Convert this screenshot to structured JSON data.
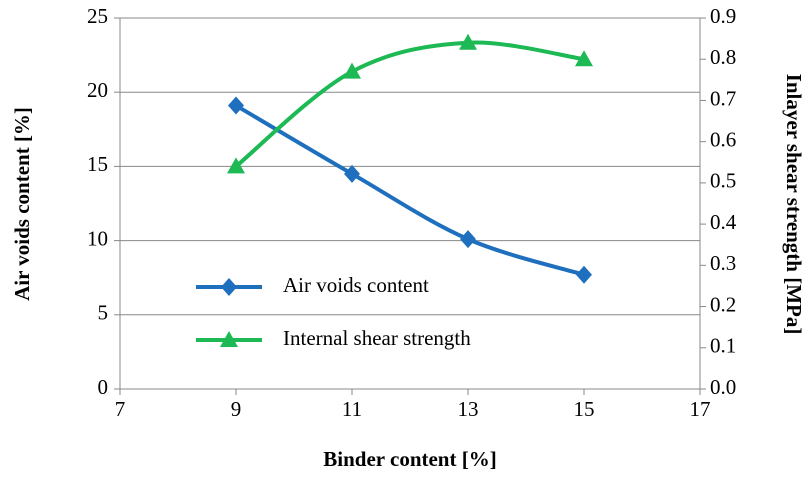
{
  "chart_data": {
    "type": "line",
    "x_label": "Binder content [%]",
    "y_label": "Air voids content [%]",
    "y2_label": "Inlayer shear strength [MPa]",
    "x": [
      9,
      11,
      13,
      15
    ],
    "xlim": [
      7,
      17
    ],
    "xticks": [
      7,
      9,
      11,
      13,
      15,
      17
    ],
    "ylim": [
      0,
      25
    ],
    "yticks": [
      0,
      5,
      10,
      15,
      20,
      25
    ],
    "y2lim": [
      0,
      0.9
    ],
    "y2ticks": [
      {
        "value": 0,
        "label": "0.0"
      },
      0.1,
      0.2,
      0.3,
      0.4,
      0.5,
      0.6,
      0.7,
      0.8,
      0.9
    ],
    "grid": true,
    "legend": "lower left",
    "series": [
      {
        "name": "Air voids content",
        "color": "#1f6fbf",
        "marker": "diamond",
        "values": [
          19.1,
          14.5,
          10.1,
          7.7
        ]
      },
      {
        "name": "Internal shear strength",
        "color": "#1db954",
        "marker": "triangle",
        "axis": "y2",
        "values": [
          0.54,
          0.77,
          0.84,
          0.8
        ]
      }
    ]
  }
}
